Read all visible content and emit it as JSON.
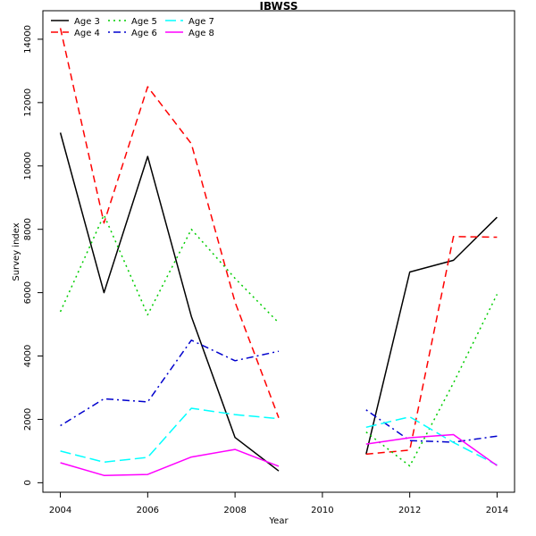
{
  "chart_data": {
    "type": "line",
    "title": "IBWSS",
    "xlabel": "Year",
    "ylabel": "Survey index",
    "xlim": [
      2003.6,
      2014.4
    ],
    "ylim": [
      -300,
      14900
    ],
    "x_ticks": [
      2004,
      2006,
      2008,
      2010,
      2012,
      2014
    ],
    "y_ticks": [
      0,
      2000,
      4000,
      6000,
      8000,
      10000,
      12000,
      14000
    ],
    "legend_position": "top-left",
    "grid": false,
    "series": [
      {
        "name": "Age 3",
        "color": "#000000",
        "line_style": "solid",
        "segments": [
          [
            [
              2004,
              11050
            ],
            [
              2005,
              6000
            ],
            [
              2006,
              10300
            ],
            [
              2007,
              5250
            ],
            [
              2008,
              1430
            ],
            [
              2009,
              370
            ]
          ],
          [
            [
              2011,
              900
            ],
            [
              2012,
              6650
            ],
            [
              2013,
              7020
            ],
            [
              2014,
              8380
            ]
          ]
        ]
      },
      {
        "name": "Age 4",
        "color": "#ff0000",
        "line_style": "dashed",
        "segments": [
          [
            [
              2004,
              14350
            ],
            [
              2005,
              8200
            ],
            [
              2006,
              12500
            ],
            [
              2007,
              10700
            ],
            [
              2008,
              5700
            ],
            [
              2009,
              2050
            ]
          ],
          [
            [
              2011,
              900
            ],
            [
              2012,
              1030
            ],
            [
              2013,
              7770
            ],
            [
              2014,
              7750
            ]
          ]
        ]
      },
      {
        "name": "Age 5",
        "color": "#00cd00",
        "line_style": "dotted",
        "segments": [
          [
            [
              2004,
              5400
            ],
            [
              2005,
              8450
            ],
            [
              2006,
              5300
            ],
            [
              2007,
              8000
            ],
            [
              2008,
              6450
            ],
            [
              2009,
              5050
            ]
          ],
          [
            [
              2011,
              1600
            ],
            [
              2012,
              530
            ],
            [
              2013,
              3150
            ],
            [
              2014,
              5950
            ]
          ]
        ]
      },
      {
        "name": "Age 6",
        "color": "#0000cd",
        "line_style": "dotdash",
        "segments": [
          [
            [
              2004,
              1800
            ],
            [
              2005,
              2650
            ],
            [
              2006,
              2550
            ],
            [
              2007,
              4500
            ],
            [
              2008,
              3850
            ],
            [
              2009,
              4150
            ]
          ],
          [
            [
              2011,
              2300
            ],
            [
              2012,
              1330
            ],
            [
              2013,
              1280
            ],
            [
              2014,
              1470
            ]
          ]
        ]
      },
      {
        "name": "Age 7",
        "color": "#00ffff",
        "line_style": "longdash",
        "segments": [
          [
            [
              2004,
              1000
            ],
            [
              2005,
              650
            ],
            [
              2006,
              800
            ],
            [
              2007,
              2350
            ],
            [
              2008,
              2150
            ],
            [
              2009,
              2020
            ]
          ],
          [
            [
              2011,
              1750
            ],
            [
              2012,
              2080
            ],
            [
              2013,
              1270
            ],
            [
              2014,
              560
            ]
          ]
        ]
      },
      {
        "name": "Age 8",
        "color": "#ff00ff",
        "line_style": "solid",
        "segments": [
          [
            [
              2004,
              630
            ],
            [
              2005,
              230
            ],
            [
              2006,
              260
            ],
            [
              2007,
              810
            ],
            [
              2008,
              1050
            ],
            [
              2009,
              520
            ]
          ],
          [
            [
              2011,
              1220
            ],
            [
              2012,
              1420
            ],
            [
              2013,
              1520
            ],
            [
              2014,
              540
            ]
          ]
        ]
      }
    ]
  }
}
